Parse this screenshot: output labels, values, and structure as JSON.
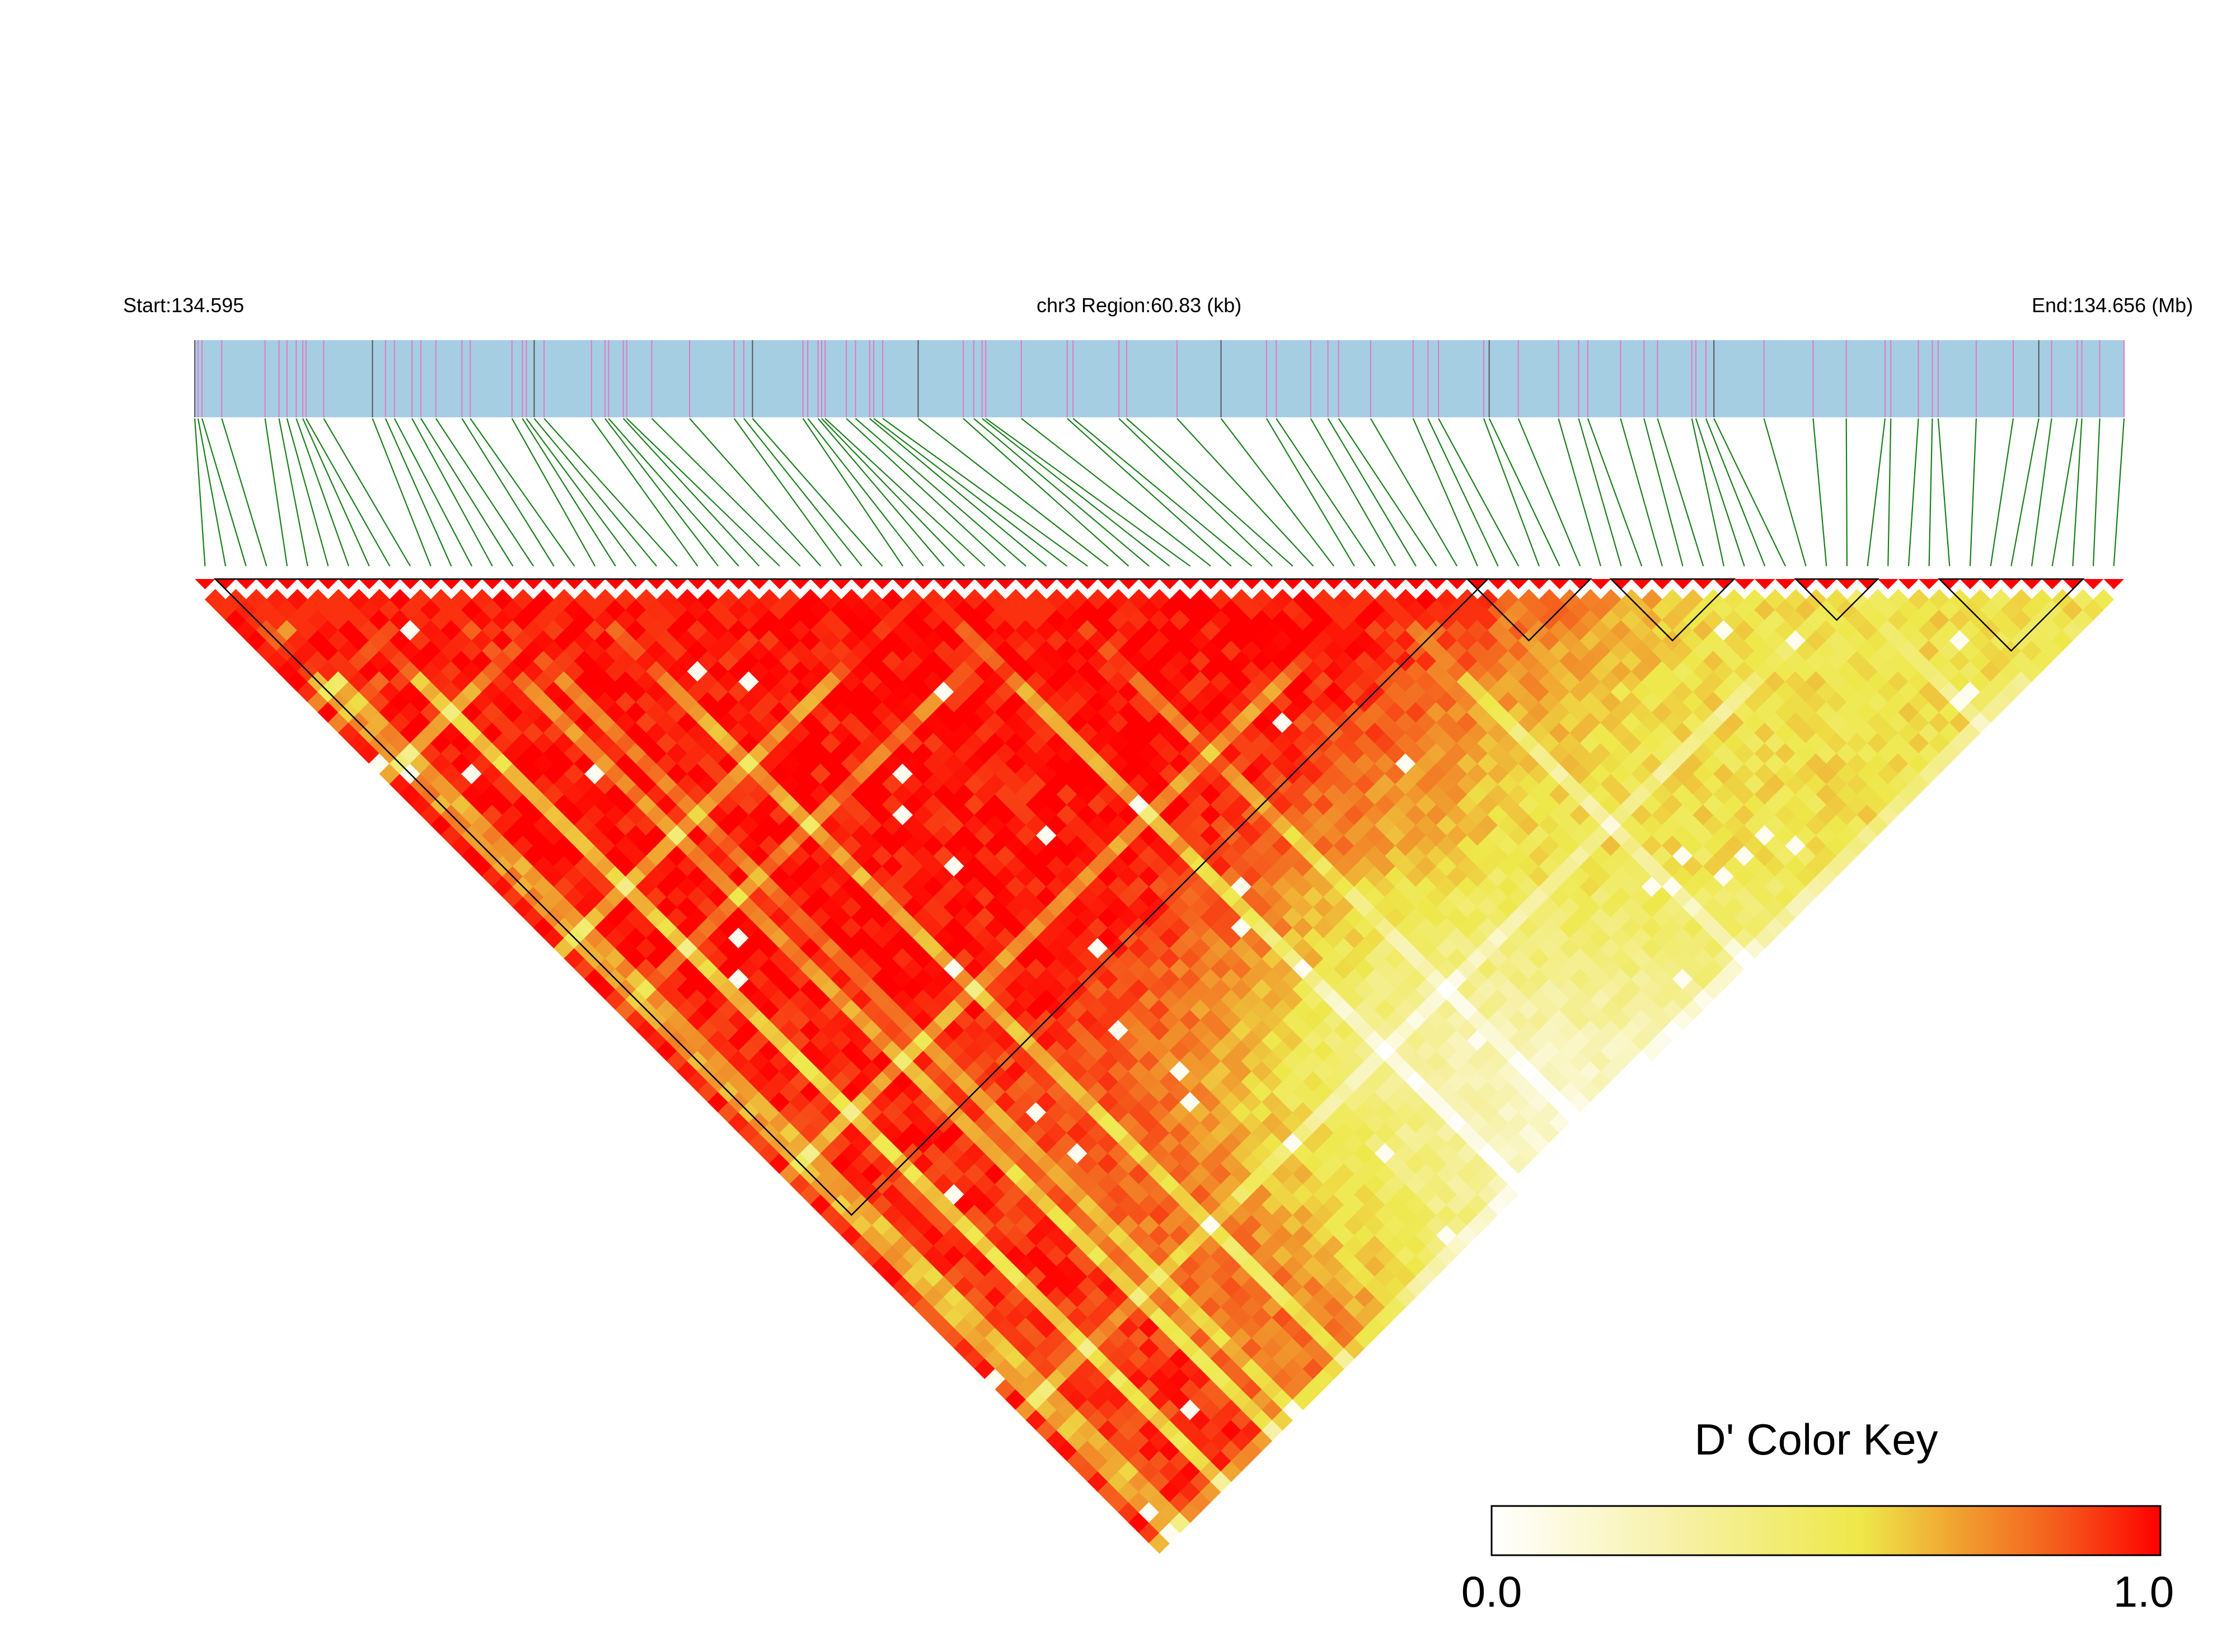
{
  "header": {
    "start_label": "Start:134.595",
    "region_label": "chr3 Region:60.83 (kb)",
    "end_label": "End:134.656 (Mb)"
  },
  "legend": {
    "title": "D' Color Key",
    "min_label": "0.0",
    "max_label": "1.0"
  },
  "chart_data": {
    "type": "heatmap",
    "chromosome": "chr3",
    "region_start_mb": 134.595,
    "region_end_mb": 134.656,
    "region_length_kb": 60.83,
    "n_snps": 94,
    "color_key_range": [
      0.0,
      1.0
    ],
    "colors": {
      "track_fill": "#a6cee3",
      "snp_tick": "#e377c2",
      "connector": "#1a7f1a",
      "block_outline": "#000000",
      "d_prime_low": "#ffffff",
      "d_prime_mid": "#eee84a",
      "d_prime_high": "#ff0000"
    },
    "ld_blocks_snp_index": [
      [
        1,
        62
      ],
      [
        62,
        67
      ],
      [
        69,
        74
      ],
      [
        78,
        81
      ],
      [
        85,
        91
      ]
    ],
    "d_prime_pattern": "mostly high D' (near 1.0) across the left and top of the triangle; low D' (yellow / white) concentrated between markers roughly 25-50 and 60-94 in the lower right of the triangle"
  }
}
